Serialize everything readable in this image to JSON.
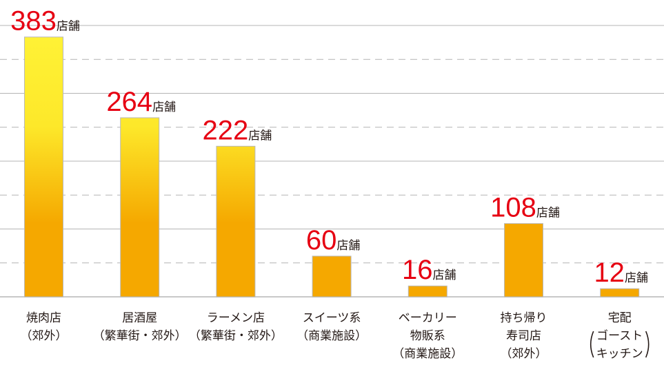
{
  "chart_data": {
    "type": "bar",
    "categories": [
      [
        "焼肉店",
        "（郊外）"
      ],
      [
        "居酒屋",
        "（繁華街・郊外）"
      ],
      [
        "ラーメン店",
        "（繁華街・郊外）"
      ],
      [
        "スイーツ系",
        "（商業施設）"
      ],
      [
        "ベーカリー",
        "物販系",
        "（商業施設）"
      ],
      [
        "持ち帰り",
        "寿司店",
        "（郊外）"
      ],
      [
        "宅配",
        "ゴースト",
        "キッチン"
      ]
    ],
    "values": [
      383,
      264,
      222,
      60,
      16,
      108,
      12
    ],
    "value_labels": [
      "383",
      "264",
      "222",
      "60",
      "16",
      "108",
      "12"
    ],
    "unit": "店舗",
    "ylim": [
      0,
      400
    ],
    "grid": {
      "solid_every": 100,
      "dashed_every": 50
    },
    "colors": {
      "bar_top": "#fff236",
      "bar_bottom": "#f5a800",
      "bar_border": "#b8b8b8",
      "value": "#e60012",
      "grid": "#b4b4b4"
    }
  }
}
